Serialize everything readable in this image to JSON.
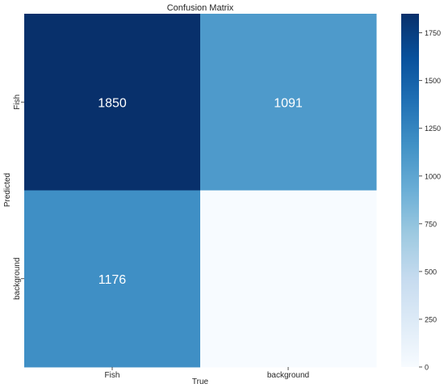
{
  "chart_data": {
    "type": "heatmap",
    "title": "Confusion Matrix",
    "xlabel": "True",
    "ylabel": "Predicted",
    "x_categories": [
      "Fish",
      "background"
    ],
    "y_categories": [
      "Fish",
      "background"
    ],
    "values": [
      [
        1850,
        1091
      ],
      [
        1176,
        0
      ]
    ],
    "cell_labels": [
      [
        "1850",
        "1091"
      ],
      [
        "1176",
        ""
      ]
    ],
    "colorbar": {
      "range": [
        0,
        1850
      ],
      "ticks": [
        0,
        250,
        500,
        750,
        1000,
        1250,
        1500,
        1750
      ],
      "colormap": "Blues"
    },
    "colors": {
      "low": "#f7fbff",
      "mid": "#6baed6",
      "high": "#08306b",
      "label_light": "#ffffff",
      "label_dark": "#262626"
    }
  }
}
